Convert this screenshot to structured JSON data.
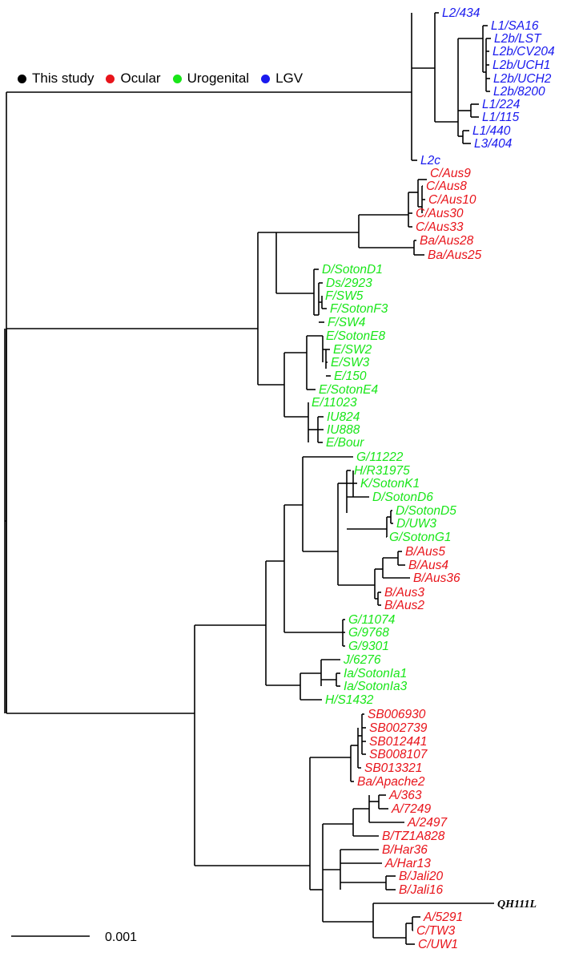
{
  "legend": [
    {
      "label": "This study",
      "color": "#000000"
    },
    {
      "label": "Ocular",
      "color": "#e8141b"
    },
    {
      "label": "Urogenital",
      "color": "#19e619"
    },
    {
      "label": "LGV",
      "color": "#1a1aee"
    }
  ],
  "scale_bar": {
    "label": "0.001"
  },
  "leaves": [
    {
      "label": "L2/434",
      "group": "LGV"
    },
    {
      "label": "L1/SA16",
      "group": "LGV"
    },
    {
      "label": "L2b/LST",
      "group": "LGV"
    },
    {
      "label": "L2b/CV204",
      "group": "LGV"
    },
    {
      "label": "L2b/UCH1",
      "group": "LGV"
    },
    {
      "label": "L2b/UCH2",
      "group": "LGV"
    },
    {
      "label": "L2b/8200",
      "group": "LGV"
    },
    {
      "label": "L1/224",
      "group": "LGV"
    },
    {
      "label": "L1/115",
      "group": "LGV"
    },
    {
      "label": "L1/440",
      "group": "LGV"
    },
    {
      "label": "L3/404",
      "group": "LGV"
    },
    {
      "label": "L2c",
      "group": "LGV"
    },
    {
      "label": "C/Aus9",
      "group": "Ocular"
    },
    {
      "label": "C/Aus8",
      "group": "Ocular"
    },
    {
      "label": "C/Aus10",
      "group": "Ocular"
    },
    {
      "label": "C/Aus30",
      "group": "Ocular"
    },
    {
      "label": "C/Aus33",
      "group": "Ocular"
    },
    {
      "label": "Ba/Aus28",
      "group": "Ocular"
    },
    {
      "label": "Ba/Aus25",
      "group": "Ocular"
    },
    {
      "label": "D/SotonD1",
      "group": "Urogenital"
    },
    {
      "label": "Ds/2923",
      "group": "Urogenital"
    },
    {
      "label": "F/SW5",
      "group": "Urogenital"
    },
    {
      "label": "F/SotonF3",
      "group": "Urogenital"
    },
    {
      "label": "F/SW4",
      "group": "Urogenital"
    },
    {
      "label": "E/SotonE8",
      "group": "Urogenital"
    },
    {
      "label": "E/SW2",
      "group": "Urogenital"
    },
    {
      "label": "E/SW3",
      "group": "Urogenital"
    },
    {
      "label": "E/150",
      "group": "Urogenital"
    },
    {
      "label": "E/SotonE4",
      "group": "Urogenital"
    },
    {
      "label": "E/11023",
      "group": "Urogenital"
    },
    {
      "label": "IU824",
      "group": "Urogenital"
    },
    {
      "label": "IU888",
      "group": "Urogenital"
    },
    {
      "label": "E/Bour",
      "group": "Urogenital"
    },
    {
      "label": "G/11222",
      "group": "Urogenital"
    },
    {
      "label": "H/R31975",
      "group": "Urogenital"
    },
    {
      "label": "K/SotonK1",
      "group": "Urogenital"
    },
    {
      "label": "D/SotonD6",
      "group": "Urogenital"
    },
    {
      "label": "D/SotonD5",
      "group": "Urogenital"
    },
    {
      "label": "D/UW3",
      "group": "Urogenital"
    },
    {
      "label": "G/SotonG1",
      "group": "Urogenital"
    },
    {
      "label": "B/Aus5",
      "group": "Ocular"
    },
    {
      "label": "B/Aus4",
      "group": "Ocular"
    },
    {
      "label": "B/Aus36",
      "group": "Ocular"
    },
    {
      "label": "B/Aus3",
      "group": "Ocular"
    },
    {
      "label": "B/Aus2",
      "group": "Ocular"
    },
    {
      "label": "G/11074",
      "group": "Urogenital"
    },
    {
      "label": "G/9768",
      "group": "Urogenital"
    },
    {
      "label": "G/9301",
      "group": "Urogenital"
    },
    {
      "label": "J/6276",
      "group": "Urogenital"
    },
    {
      "label": "Ia/SotonIa1",
      "group": "Urogenital"
    },
    {
      "label": "Ia/SotonIa3",
      "group": "Urogenital"
    },
    {
      "label": "H/S1432",
      "group": "Urogenital"
    },
    {
      "label": "SB006930",
      "group": "Ocular"
    },
    {
      "label": "SB002739",
      "group": "Ocular"
    },
    {
      "label": "SB012441",
      "group": "Ocular"
    },
    {
      "label": "SB008107",
      "group": "Ocular"
    },
    {
      "label": "SB013321",
      "group": "Ocular"
    },
    {
      "label": "Ba/Apache2",
      "group": "Ocular"
    },
    {
      "label": "A/363",
      "group": "Ocular"
    },
    {
      "label": "A/7249",
      "group": "Ocular"
    },
    {
      "label": "A/2497",
      "group": "Ocular"
    },
    {
      "label": "B/TZ1A828",
      "group": "Ocular"
    },
    {
      "label": "B/Har36",
      "group": "Ocular"
    },
    {
      "label": "A/Har13",
      "group": "Ocular"
    },
    {
      "label": "B/Jali20",
      "group": "Ocular"
    },
    {
      "label": "B/Jali16",
      "group": "Ocular"
    },
    {
      "label": "QH111L",
      "group": "This study"
    },
    {
      "label": "A/5291",
      "group": "Ocular"
    },
    {
      "label": "C/TW3",
      "group": "Ocular"
    },
    {
      "label": "C/UW1",
      "group": "Ocular"
    }
  ]
}
